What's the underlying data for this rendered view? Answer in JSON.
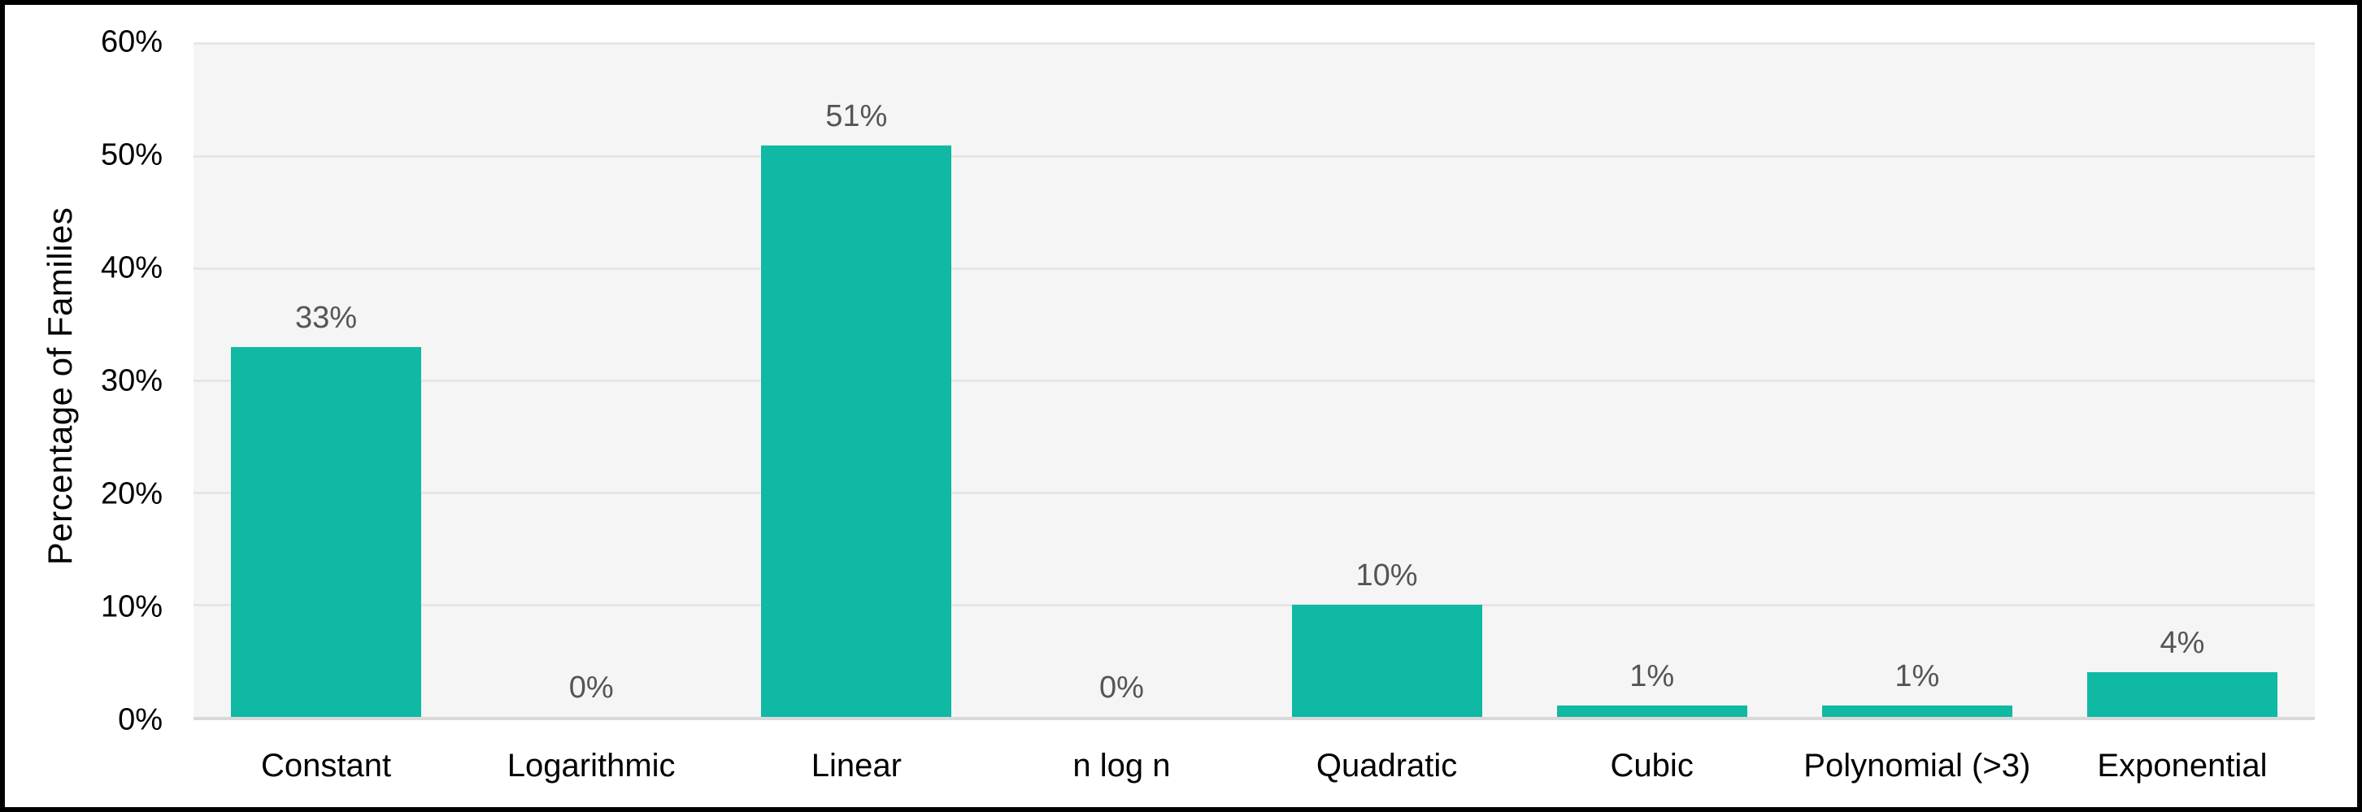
{
  "chart_data": {
    "type": "bar",
    "title": "",
    "xlabel": "",
    "ylabel": "Percentage of Families",
    "categories": [
      "Constant",
      "Logarithmic",
      "Linear",
      "n log n",
      "Quadratic",
      "Cubic",
      "Polynomial (>3)",
      "Exponential"
    ],
    "values": [
      33,
      0,
      51,
      0,
      10,
      1,
      1,
      4
    ],
    "value_labels": [
      "33%",
      "0%",
      "51%",
      "0%",
      "10%",
      "1%",
      "1%",
      "4%"
    ],
    "ylim": [
      0,
      60
    ],
    "ytick_labels": [
      "0%",
      "10%",
      "20%",
      "30%",
      "40%",
      "50%",
      "60%"
    ],
    "grid": "horizontal-on",
    "legend": "none",
    "colors": {
      "bar": "#10b9a3",
      "plot_background": "#f5f5f5",
      "gridline": "#e6e6e6",
      "axis_line": "#d9d9d9",
      "value_label_text": "#555555",
      "axis_text": "#000000",
      "frame_border": "#000000",
      "page_background": "#ffffff"
    }
  }
}
